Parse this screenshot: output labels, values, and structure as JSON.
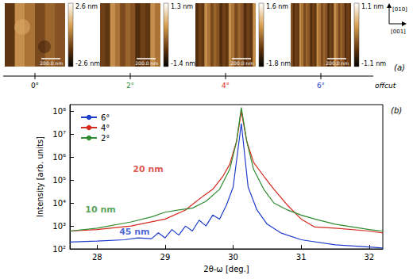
{
  "figure_a": {
    "panel_label": "(a)",
    "axis_label": "offcut",
    "directions": [
      "[010]",
      "[001]"
    ],
    "images": [
      {
        "offcut": "0°",
        "color": "#000000",
        "scale_bar": "200.0 nm",
        "colorbar": {
          "range": [
            -2.6,
            2.6
          ],
          "ticks": [
            {
              "value": 2.6,
              "label": "2.6 nm"
            },
            {
              "value": -2.6,
              "label": "-2.6 nm"
            }
          ]
        }
      },
      {
        "offcut": "2°",
        "color": "#2e8b2e",
        "scale_bar": "200.0 nm",
        "colorbar": {
          "range": [
            -1.4,
            1.3
          ],
          "ticks": [
            {
              "value": 1.3,
              "label": "1.3 nm"
            },
            {
              "value": -1.4,
              "label": "-1.4 nm"
            }
          ]
        }
      },
      {
        "offcut": "4°",
        "color": "#d42a1e",
        "scale_bar": "200.0 nm",
        "colorbar": {
          "range": [
            -1.8,
            1.6
          ],
          "ticks": [
            {
              "value": 1.6,
              "label": "1.6 nm"
            },
            {
              "value": -1.8,
              "label": "-1.8 nm"
            }
          ]
        }
      },
      {
        "offcut": "6°",
        "color": "#1e3ccc",
        "scale_bar": "200.0 nm",
        "colorbar": {
          "range": [
            -1.1,
            1.1
          ],
          "ticks": [
            {
              "value": 1.1,
              "label": "1.1 nm"
            },
            {
              "value": -1.1,
              "label": "-1.1 nm"
            }
          ]
        }
      }
    ]
  },
  "chart_data": {
    "type": "line",
    "panel_label": "(b)",
    "x_label": "2θ-ω [deg.]",
    "y_label": "Intensity [arb. units]",
    "log": "y",
    "grid": false,
    "legend": "top-left",
    "xlim": [
      27.6,
      32.2
    ],
    "xticks": [
      28,
      29,
      30,
      31,
      32
    ],
    "ylim": [
      100,
      200000000
    ],
    "yticks": [
      {
        "value": 100,
        "label": "10²"
      },
      {
        "value": 1000,
        "label": "10³"
      },
      {
        "value": 10000,
        "label": "10⁴"
      },
      {
        "value": 100000,
        "label": "10⁵"
      },
      {
        "value": 1000000,
        "label": "10⁶"
      },
      {
        "value": 10000000,
        "label": "10⁷"
      },
      {
        "value": 100000000,
        "label": "10⁸"
      }
    ],
    "series": [
      {
        "name": "6°",
        "color": "#1e3ccc",
        "x": [
          27.6,
          28.0,
          28.4,
          28.6,
          28.8,
          28.9,
          29.0,
          29.1,
          29.2,
          29.3,
          29.4,
          29.5,
          29.6,
          29.7,
          29.8,
          29.9,
          30.0,
          30.12,
          30.22,
          30.35,
          30.5,
          30.7,
          31.0,
          31.5,
          32.0,
          32.2
        ],
        "values": [
          200,
          220,
          250,
          300,
          280,
          500,
          300,
          700,
          400,
          1000,
          600,
          1800,
          1000,
          3000,
          2000,
          8000,
          50000,
          30000000,
          50000,
          5000,
          1200,
          500,
          250,
          150,
          120,
          110
        ]
      },
      {
        "name": "4°",
        "color": "#d42a1e",
        "x": [
          27.6,
          28.0,
          28.5,
          29.0,
          29.3,
          29.5,
          29.7,
          29.85,
          29.95,
          30.05,
          30.12,
          30.2,
          30.3,
          30.45,
          30.6,
          30.8,
          31.0,
          31.2,
          31.5,
          32.0,
          32.2
        ],
        "values": [
          600,
          700,
          1000,
          2000,
          5000,
          15000,
          40000,
          150000,
          500000,
          5000000,
          100000000,
          5000000,
          600000,
          150000,
          40000,
          8000,
          2000,
          900,
          800,
          600,
          500
        ]
      },
      {
        "name": "2°",
        "color": "#2e8b2e",
        "x": [
          27.6,
          28.0,
          28.5,
          28.8,
          29.0,
          29.2,
          29.4,
          29.6,
          29.8,
          29.95,
          30.05,
          30.12,
          30.2,
          30.3,
          30.45,
          30.6,
          30.8,
          31.0,
          31.2,
          31.5,
          32.0,
          32.2
        ],
        "values": [
          600,
          800,
          1500,
          2500,
          4000,
          5000,
          6000,
          12000,
          40000,
          300000,
          5000000,
          150000000,
          5000000,
          300000,
          40000,
          10000,
          5000,
          3000,
          2000,
          1200,
          700,
          600
        ]
      }
    ],
    "annotations": [
      {
        "text": "10 nm",
        "x": 28.05,
        "y": 5000,
        "color": "#2e8b2e"
      },
      {
        "text": "20 nm",
        "x": 28.75,
        "y": 300000,
        "color": "#d42a1e"
      },
      {
        "text": "45 nm",
        "x": 28.55,
        "y": 550,
        "color": "#1e3ccc"
      }
    ]
  }
}
